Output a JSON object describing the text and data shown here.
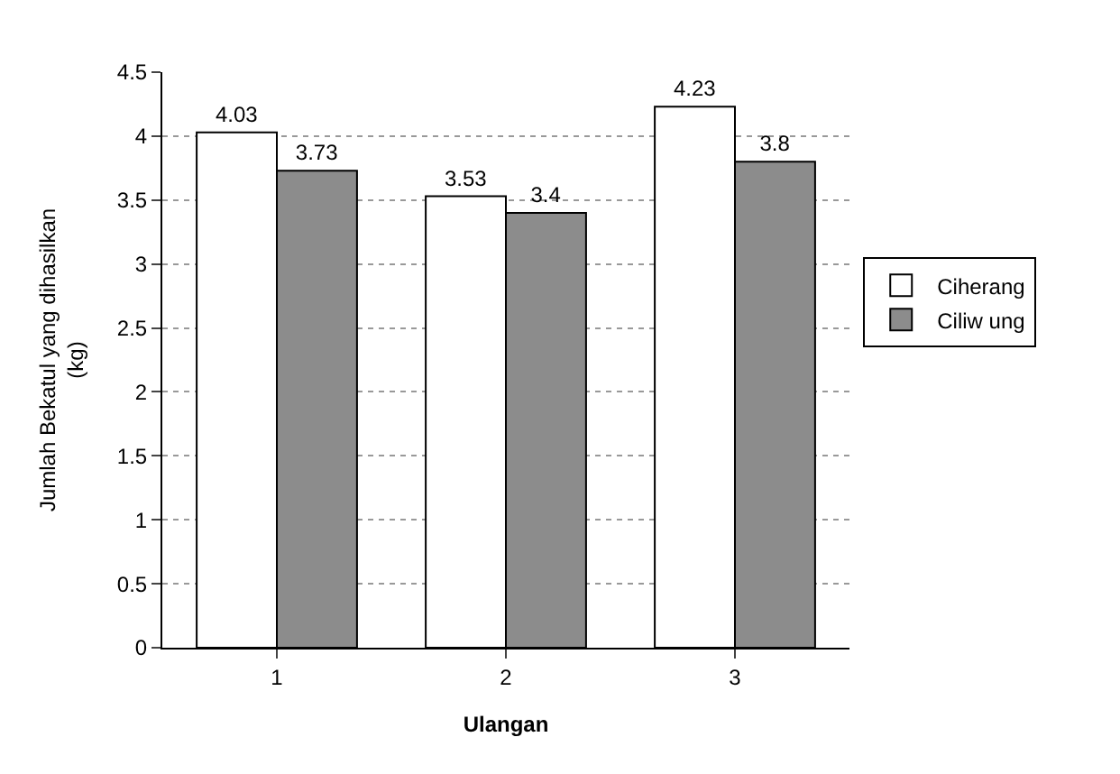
{
  "chart_data": {
    "type": "bar",
    "xlabel": "Ulangan",
    "ylabel": "Jumlah Bekatul yang dihasilkan\n(kg)",
    "categories": [
      "1",
      "2",
      "3"
    ],
    "series": [
      {
        "name": "Ciherang",
        "color": "#ffffff",
        "values": [
          4.03,
          3.53,
          4.23
        ]
      },
      {
        "name": "Ciliw ung",
        "color": "#8c8c8c",
        "values": [
          3.73,
          3.4,
          3.8
        ]
      }
    ],
    "ylim": [
      0,
      4.5
    ],
    "yticks": [
      0,
      0.5,
      1,
      1.5,
      2,
      2.5,
      3,
      3.5,
      4,
      4.5
    ],
    "grid": "y",
    "data_labels": true,
    "legend": "right"
  }
}
